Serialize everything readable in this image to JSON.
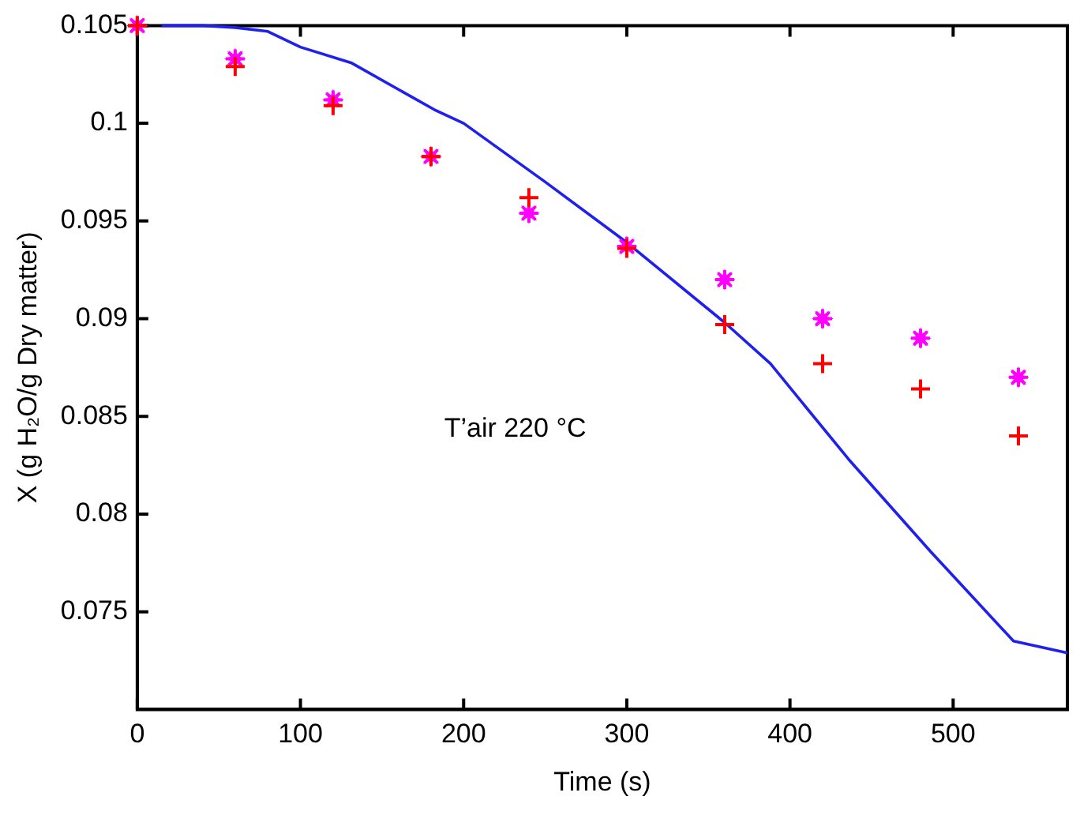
{
  "chart_data": {
    "type": "scatter",
    "xlabel": "Time (s)",
    "ylabel": "X (g H₂O/g Dry matter)",
    "annotations": [
      "T’air 220 °C"
    ],
    "xlim": [
      0,
      570
    ],
    "xticks": [
      0,
      100,
      200,
      300,
      400,
      500
    ],
    "ylim": [
      0.07,
      0.105
    ],
    "yticks": [
      0.075,
      0.08,
      0.085,
      0.09,
      0.095,
      0.1,
      0.105
    ],
    "grid": false,
    "legend": false,
    "series": [
      {
        "type": "line",
        "color": "#2020ee",
        "marker": "none",
        "x": [
          15,
          40,
          60,
          80,
          100,
          131,
          182,
          200,
          250,
          300,
          360,
          388,
          436,
          486,
          537,
          570
        ],
        "values": [
          0.105,
          0.105,
          0.1049,
          0.1047,
          0.1039,
          0.1031,
          0.1007,
          0.1,
          0.097,
          0.0939,
          0.0898,
          0.0877,
          0.0828,
          0.0781,
          0.0735,
          0.0729
        ]
      },
      {
        "color": "#ff00ff",
        "marker": "star",
        "x": [
          0,
          60,
          120,
          180,
          240,
          300,
          360,
          420,
          480,
          540
        ],
        "values": [
          0.105,
          0.1033,
          0.1012,
          0.0983,
          0.0954,
          0.0937,
          0.092,
          0.09,
          0.089,
          0.087
        ]
      },
      {
        "color": "#ff0000",
        "marker": "cross",
        "x": [
          0,
          60,
          120,
          180,
          240,
          300,
          360,
          420,
          480,
          540
        ],
        "values": [
          0.105,
          0.1029,
          0.1009,
          0.0983,
          0.0962,
          0.0936,
          0.0897,
          0.0877,
          0.0864,
          0.084
        ]
      }
    ]
  }
}
